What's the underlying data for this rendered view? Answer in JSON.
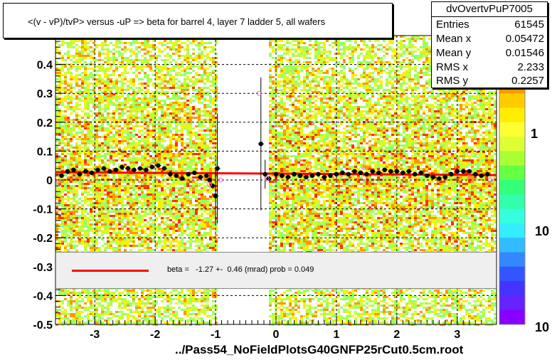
{
  "title": "<(v - vP)/tvP> versus  -uP => beta for barrel 4, layer 7 ladder 5, all wafers",
  "x_axis_title": "../Pass54_NoFieldPlotsG40GNFP25rCut0.5cm.root",
  "stats": {
    "name": "dvOvertvPuP7005",
    "rows": [
      {
        "label": "Entries",
        "value": "61545"
      },
      {
        "label": "Mean x",
        "value": "0.05472"
      },
      {
        "label": "Mean y",
        "value": "0.01546"
      },
      {
        "label": "RMS x",
        "value": "2.233"
      },
      {
        "label": "RMS y",
        "value": "0.2257"
      }
    ]
  },
  "fit_legend": "beta =   -1.27 +-  0.46 (mrad) prob = 0.049",
  "colors": {
    "fit_line": "#ff0000",
    "profile_points": "#000000",
    "open_markers": "#ff66cc"
  },
  "chart_data": {
    "type": "heatmap",
    "xlim": [
      -3.65,
      3.65
    ],
    "ylim": [
      -0.5,
      0.5
    ],
    "grid": true,
    "x_ticks": [
      {
        "value": -3,
        "label": "-3"
      },
      {
        "value": -2,
        "label": "-2"
      },
      {
        "value": -1,
        "label": "-1"
      },
      {
        "value": 0,
        "label": "0"
      },
      {
        "value": 1,
        "label": "1"
      },
      {
        "value": 2,
        "label": "2"
      },
      {
        "value": 3,
        "label": "3"
      }
    ],
    "y_ticks": [
      {
        "value": -0.5,
        "label": "-0.5"
      },
      {
        "value": -0.4,
        "label": "-0.4"
      },
      {
        "value": -0.3,
        "label": "-0.3"
      },
      {
        "value": -0.2,
        "label": "-0.2"
      },
      {
        "value": -0.1,
        "label": "-0.1"
      },
      {
        "value": 0,
        "label": "0"
      },
      {
        "value": 0.1,
        "label": "0.1"
      },
      {
        "value": 0.2,
        "label": "0.2"
      },
      {
        "value": 0.3,
        "label": "0.3"
      },
      {
        "value": 0.4,
        "label": "0.4"
      }
    ],
    "empty_x_range": [
      -0.95,
      -0.12
    ],
    "color_scale_labels": [
      "1",
      "10"
    ],
    "fit_line": {
      "x": [
        -3.65,
        3.65
      ],
      "y": [
        0.027,
        0.017
      ]
    },
    "profile_points": [
      [
        -3.55,
        0.015
      ],
      [
        -3.45,
        0.03
      ],
      [
        -3.35,
        0.035
      ],
      [
        -3.25,
        0.02
      ],
      [
        -3.15,
        0.03
      ],
      [
        -3.05,
        0.025
      ],
      [
        -2.95,
        0.035
      ],
      [
        -2.85,
        0.04
      ],
      [
        -2.75,
        0.03
      ],
      [
        -2.65,
        0.035
      ],
      [
        -2.55,
        0.045
      ],
      [
        -2.45,
        0.04
      ],
      [
        -2.35,
        0.035
      ],
      [
        -2.25,
        0.04
      ],
      [
        -2.15,
        0.035
      ],
      [
        -2.05,
        0.045
      ],
      [
        -1.95,
        0.05
      ],
      [
        -1.85,
        0.04
      ],
      [
        -1.75,
        0.02
      ],
      [
        -1.65,
        0.015
      ],
      [
        -1.55,
        0.005
      ],
      [
        -1.45,
        0.02
      ],
      [
        -1.35,
        0.025
      ],
      [
        -1.25,
        0.01
      ],
      [
        -1.15,
        0.015
      ],
      [
        -1.1,
        0.0
      ],
      [
        -1.05,
        -0.02
      ],
      [
        -1.0,
        -0.055
      ],
      [
        -0.97,
        0.04
      ],
      [
        -0.25,
        0.125
      ],
      [
        -0.18,
        0.02
      ],
      [
        -0.12,
        0.005
      ],
      [
        0.0,
        0.02
      ],
      [
        0.1,
        0.015
      ],
      [
        0.2,
        0.01
      ],
      [
        0.3,
        0.02
      ],
      [
        0.4,
        0.015
      ],
      [
        0.5,
        0.01
      ],
      [
        0.6,
        0.015
      ],
      [
        0.7,
        0.02
      ],
      [
        0.8,
        0.01
      ],
      [
        0.9,
        0.015
      ],
      [
        1.0,
        0.02
      ],
      [
        1.1,
        0.025
      ],
      [
        1.2,
        0.02
      ],
      [
        1.3,
        0.03
      ],
      [
        1.4,
        0.025
      ],
      [
        1.5,
        0.02
      ],
      [
        1.6,
        0.03
      ],
      [
        1.7,
        0.025
      ],
      [
        1.8,
        0.035
      ],
      [
        1.9,
        0.03
      ],
      [
        2.0,
        0.03
      ],
      [
        2.1,
        0.025
      ],
      [
        2.2,
        0.03
      ],
      [
        2.3,
        0.02
      ],
      [
        2.4,
        0.025
      ],
      [
        2.5,
        0.015
      ],
      [
        2.6,
        0.01
      ],
      [
        2.7,
        0.005
      ],
      [
        2.8,
        0.01
      ],
      [
        2.9,
        0.02
      ],
      [
        3.0,
        0.03
      ],
      [
        3.1,
        0.03
      ],
      [
        3.2,
        0.03
      ],
      [
        3.3,
        0.02
      ],
      [
        3.4,
        0.015
      ],
      [
        3.5,
        0.02
      ]
    ],
    "error_bars": [
      {
        "x": -1.0,
        "y": -0.055,
        "err": 0.1
      },
      {
        "x": -0.97,
        "y": 0.04,
        "err": 0.19
      },
      {
        "x": -0.25,
        "y": 0.125,
        "err": 0.23
      },
      {
        "x": -0.18,
        "y": 0.02,
        "err": 0.05
      }
    ],
    "open_markers": [
      [
        -3.6,
        -0.005
      ],
      [
        -1.1,
        -0.015
      ],
      [
        -0.92,
        0.0
      ],
      [
        -0.28,
        0.3
      ],
      [
        -0.15,
        0.005
      ],
      [
        0.55,
        0.045
      ],
      [
        1.45,
        0.045
      ],
      [
        3.2,
        0.01
      ],
      [
        3.55,
        0.0
      ]
    ]
  }
}
